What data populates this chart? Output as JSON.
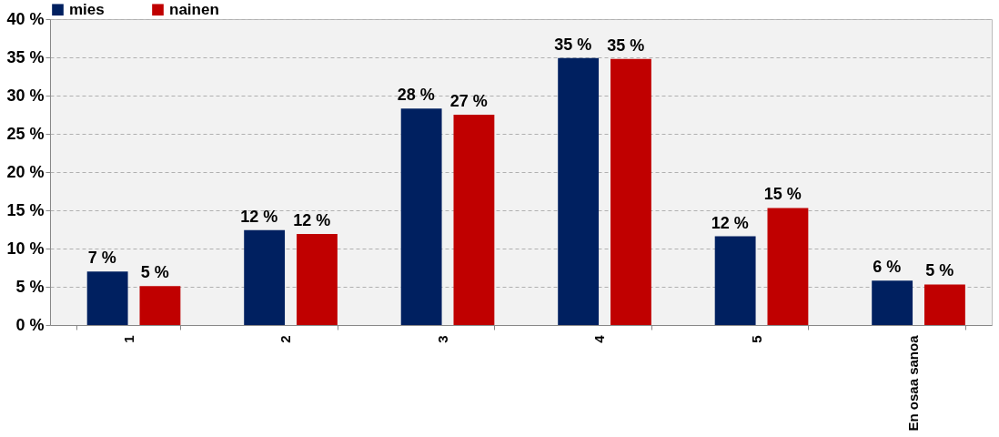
{
  "chart_data": {
    "type": "bar",
    "categories": [
      "1",
      "2",
      "3",
      "4",
      "5",
      "En osaa sanoa"
    ],
    "series": [
      {
        "name": "mies",
        "color": "#002060",
        "values": [
          7.0,
          12.4,
          28.3,
          34.9,
          11.6,
          5.8
        ],
        "value_labels": [
          "7 %",
          "12 %",
          "28 %",
          "35 %",
          "12 %",
          "6 %"
        ]
      },
      {
        "name": "nainen",
        "color": "#c00000",
        "values": [
          5.1,
          11.9,
          27.5,
          34.8,
          15.3,
          5.3
        ],
        "value_labels": [
          "5 %",
          "12 %",
          "27 %",
          "35 %",
          "15 %",
          "5 %"
        ]
      }
    ],
    "ylim": [
      0,
      40
    ],
    "yticks": [
      {
        "value": 0,
        "label": "0 %"
      },
      {
        "value": 5,
        "label": "5 %"
      },
      {
        "value": 10,
        "label": "10 %"
      },
      {
        "value": 15,
        "label": "15 %"
      },
      {
        "value": 20,
        "label": "20 %"
      },
      {
        "value": 25,
        "label": "25 %"
      },
      {
        "value": 30,
        "label": "30 %"
      },
      {
        "value": 35,
        "label": "35 %"
      },
      {
        "value": 40,
        "label": "40 %"
      }
    ],
    "grid": "y",
    "legend": "top"
  }
}
